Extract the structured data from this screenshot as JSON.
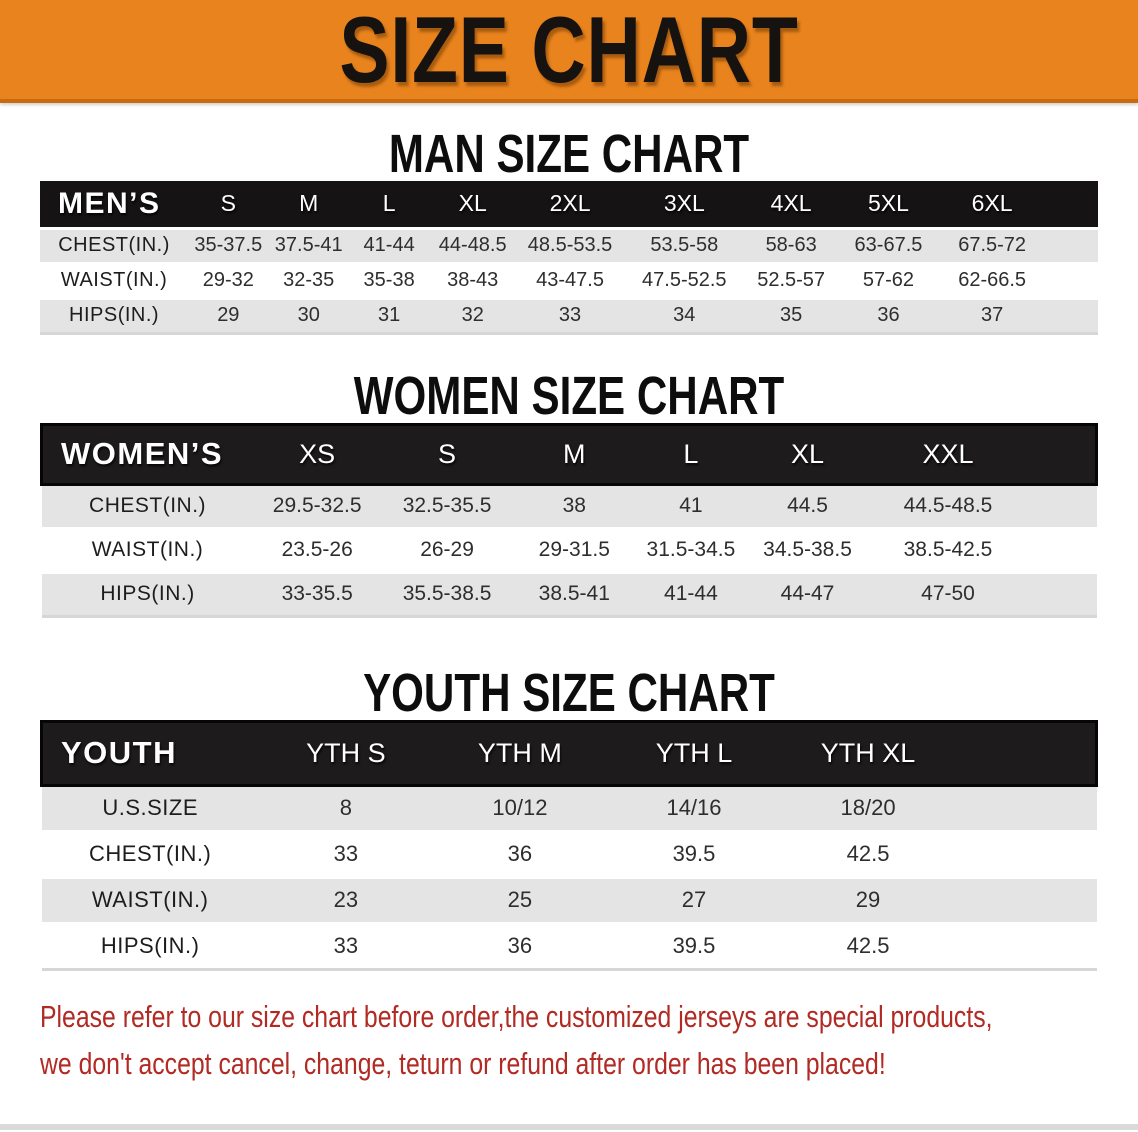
{
  "banner": {
    "title": "SIZE CHART",
    "bg_color": "#E8831D"
  },
  "sections": [
    {
      "heading": "MAN SIZE CHART",
      "table": {
        "group_label": "MEN’S",
        "sizes": [
          "S",
          "M",
          "L",
          "XL",
          "2XL",
          "3XL",
          "4XL",
          "5XL",
          "6XL"
        ],
        "rows": [
          {
            "label": "CHEST(IN.)",
            "values": [
              "35-37.5",
              "37.5-41",
              "41-44",
              "44-48.5",
              "48.5-53.5",
              "53.5-58",
              "58-63",
              "63-67.5",
              "67.5-72"
            ]
          },
          {
            "label": "WAIST(IN.)",
            "values": [
              "29-32",
              "32-35",
              "35-38",
              "38-43",
              "43-47.5",
              "47.5-52.5",
              "52.5-57",
              "57-62",
              "62-66.5"
            ]
          },
          {
            "label": "HIPS(IN.)",
            "values": [
              "29",
              "30",
              "31",
              "32",
              "33",
              "34",
              "35",
              "36",
              "37"
            ]
          }
        ]
      }
    },
    {
      "heading": "WOMEN SIZE CHART",
      "table": {
        "group_label": "WOMEN’S",
        "sizes": [
          "XS",
          "S",
          "M",
          "L",
          "XL",
          "XXL"
        ],
        "rows": [
          {
            "label": "CHEST(IN.)",
            "values": [
              "29.5-32.5",
              "32.5-35.5",
              "38",
              "41",
              "44.5",
              "44.5-48.5"
            ]
          },
          {
            "label": "WAIST(IN.)",
            "values": [
              "23.5-26",
              "26-29",
              "29-31.5",
              "31.5-34.5",
              "34.5-38.5",
              "38.5-42.5"
            ]
          },
          {
            "label": "HIPS(IN.)",
            "values": [
              "33-35.5",
              "35.5-38.5",
              "38.5-41",
              "41-44",
              "44-47",
              "47-50"
            ]
          }
        ]
      }
    },
    {
      "heading": "YOUTH SIZE CHART",
      "table": {
        "group_label": "YOUTH",
        "sizes": [
          "YTH S",
          "YTH M",
          "YTH L",
          "YTH XL"
        ],
        "rows": [
          {
            "label": "U.S.SIZE",
            "values": [
              "8",
              "10/12",
              "14/16",
              "18/20"
            ]
          },
          {
            "label": "CHEST(IN.)",
            "values": [
              "33",
              "36",
              "39.5",
              "42.5"
            ]
          },
          {
            "label": "WAIST(IN.)",
            "values": [
              "23",
              "25",
              "27",
              "29"
            ]
          },
          {
            "label": "HIPS(IN.)",
            "values": [
              "33",
              "36",
              "39.5",
              "42.5"
            ]
          }
        ]
      }
    }
  ],
  "disclaimer": {
    "line1": "Please refer to our size chart before order,the customized jerseys are special products,",
    "line2": "we don't accept cancel, change, teturn or refund after order has been placed!",
    "text_color": "#B22A24"
  },
  "colors": {
    "banner_bg": "#E8831D",
    "header_bar": "#171515",
    "row_shade": "#E4E4E4",
    "row_plain": "#FFFFFF",
    "disclaimer_text": "#B22A24"
  }
}
